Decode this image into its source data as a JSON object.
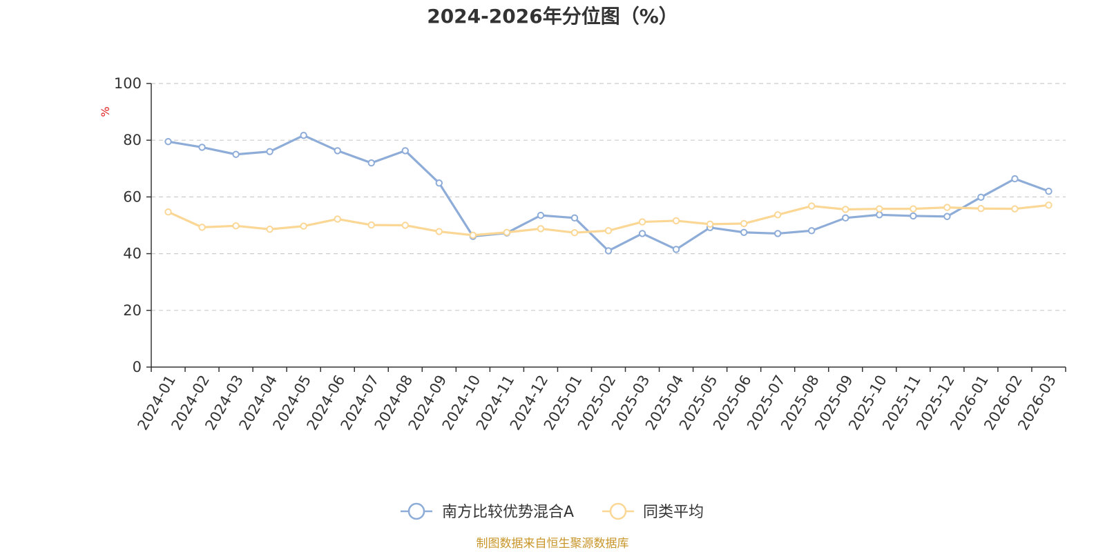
{
  "chart_data": {
    "type": "line",
    "title": "2024-2026年分位图（%）",
    "ylabel": "%",
    "xlabel": "",
    "ylim": [
      0,
      100
    ],
    "yticks": [
      0,
      20,
      40,
      60,
      80,
      100
    ],
    "grid": true,
    "legend_position": "bottom",
    "categories": [
      "2024-01",
      "2024-02",
      "2024-03",
      "2024-04",
      "2024-05",
      "2024-06",
      "2024-07",
      "2024-08",
      "2024-09",
      "2024-10",
      "2024-11",
      "2024-12",
      "2025-01",
      "2025-02",
      "2025-03",
      "2025-04",
      "2025-05",
      "2025-06",
      "2025-07",
      "2025-08",
      "2025-09",
      "2025-10",
      "2025-11",
      "2025-12",
      "2026-01",
      "2026-02",
      "2026-03"
    ],
    "series": [
      {
        "name": "南方比较优势混合A",
        "color": "#8eacd8",
        "values": [
          79.5,
          77.5,
          75,
          76,
          81.7,
          76.3,
          72,
          76.3,
          64.9,
          46.1,
          47.3,
          53.5,
          52.6,
          41,
          47.1,
          41.5,
          49.2,
          47.5,
          47.1,
          48.1,
          52.6,
          53.7,
          53.3,
          53.1,
          59.9,
          66.4,
          62
        ]
      },
      {
        "name": "同类平均",
        "color": "#fbd796",
        "values": [
          54.7,
          49.3,
          49.8,
          48.6,
          49.7,
          52.2,
          50.1,
          50,
          47.8,
          46.5,
          47.5,
          48.8,
          47.4,
          48.1,
          51.2,
          51.6,
          50.4,
          50.6,
          53.7,
          56.8,
          55.6,
          55.8,
          55.8,
          56.3,
          55.9,
          55.8,
          57.1
        ]
      }
    ]
  },
  "source_text": "制图数据来自恒生聚源数据库",
  "colors": {
    "title": "#333333",
    "axis": "#333333",
    "grid": "#cccccc",
    "unit": "#e02020",
    "source": "#c8962a"
  }
}
